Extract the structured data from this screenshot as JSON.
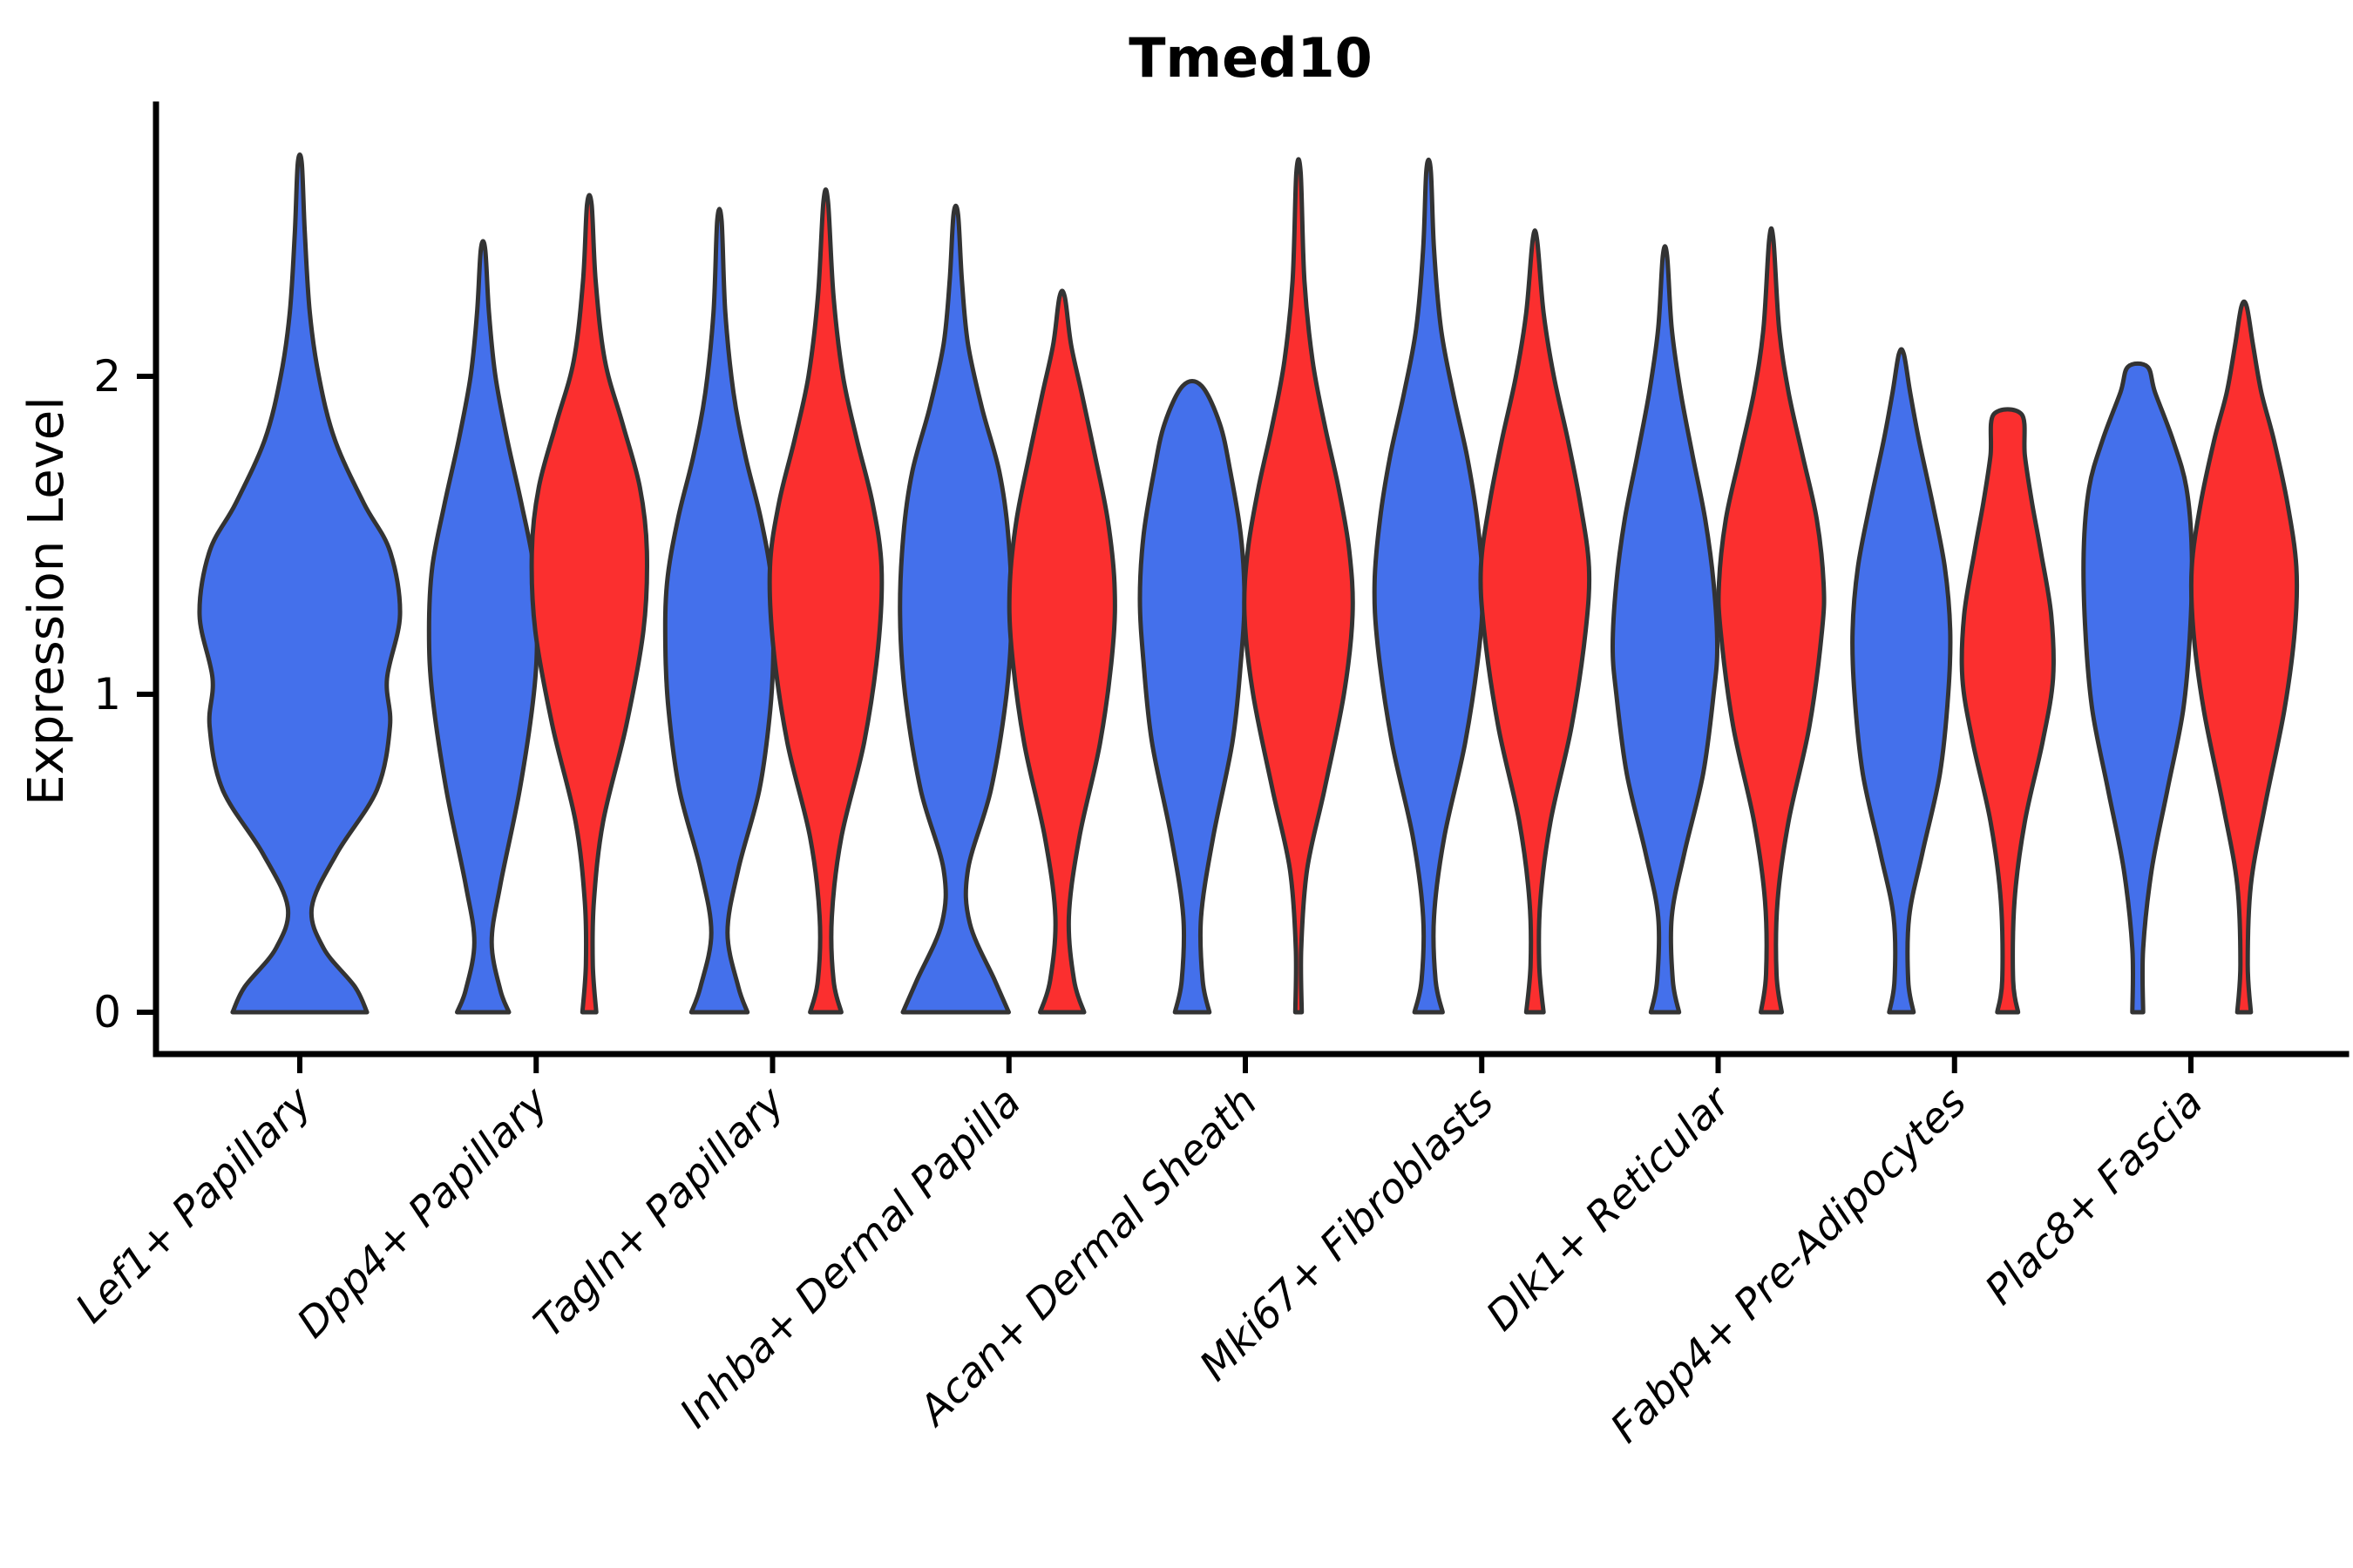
{
  "title": "Tmed10",
  "chart_data": {
    "type": "violin",
    "title": "Tmed10",
    "xlabel": "",
    "ylabel": "Expression Level",
    "ylim": [
      -0.14,
      2.85
    ],
    "yticks": [
      0,
      1,
      2
    ],
    "grid": false,
    "legend": "none",
    "colors": {
      "blue": "#4470eb",
      "red": "#fb2f2f",
      "outline": "#333333"
    },
    "categories": [
      "Lef1+ Papillary",
      "Dpp4+ Papillary",
      "Tagln+ Papillary",
      "Inhba+ Dermal Papilla",
      "Acan+ Dermal Sheath",
      "Mki67+ Fibroblasts",
      "Dlk1+ Reticular",
      "Fabp4+ Pre-Adipocytes",
      "Plac8+ Fascia"
    ],
    "violins": [
      {
        "category_index": 0,
        "group": "blue",
        "position": "center",
        "width": 115,
        "flat_top": false,
        "max_expression": 2.67,
        "profile": [
          [
            0,
            0.67
          ],
          [
            0.08,
            0.55
          ],
          [
            0.2,
            0.24
          ],
          [
            0.33,
            0.12
          ],
          [
            0.5,
            0.37
          ],
          [
            0.7,
            0.77
          ],
          [
            0.9,
            0.9
          ],
          [
            1.05,
            0.87
          ],
          [
            1.25,
            1.0
          ],
          [
            1.45,
            0.9
          ],
          [
            1.6,
            0.64
          ],
          [
            1.8,
            0.35
          ],
          [
            2.0,
            0.19
          ],
          [
            2.2,
            0.1
          ],
          [
            2.45,
            0.05
          ],
          [
            2.67,
            0.02
          ]
        ]
      },
      {
        "category_index": 1,
        "group": "blue",
        "position": "left",
        "width": 62,
        "flat_top": false,
        "max_expression": 2.4,
        "profile": [
          [
            0,
            0.48
          ],
          [
            0.07,
            0.32
          ],
          [
            0.22,
            0.16
          ],
          [
            0.4,
            0.32
          ],
          [
            0.7,
            0.68
          ],
          [
            1.0,
            0.94
          ],
          [
            1.2,
            1.0
          ],
          [
            1.4,
            0.94
          ],
          [
            1.6,
            0.71
          ],
          [
            1.8,
            0.45
          ],
          [
            2.0,
            0.23
          ],
          [
            2.2,
            0.11
          ],
          [
            2.4,
            0.04
          ]
        ]
      },
      {
        "category_index": 1,
        "group": "red",
        "position": "right",
        "width": 66,
        "flat_top": false,
        "max_expression": 2.54,
        "profile": [
          [
            0,
            0.12
          ],
          [
            0.15,
            0.06
          ],
          [
            0.35,
            0.08
          ],
          [
            0.6,
            0.24
          ],
          [
            0.9,
            0.64
          ],
          [
            1.2,
            0.94
          ],
          [
            1.45,
            1.0
          ],
          [
            1.65,
            0.88
          ],
          [
            1.85,
            0.58
          ],
          [
            2.05,
            0.27
          ],
          [
            2.3,
            0.11
          ],
          [
            2.54,
            0.04
          ]
        ]
      },
      {
        "category_index": 2,
        "group": "blue",
        "position": "left",
        "width": 62,
        "flat_top": false,
        "max_expression": 2.49,
        "profile": [
          [
            0,
            0.52
          ],
          [
            0.08,
            0.35
          ],
          [
            0.25,
            0.15
          ],
          [
            0.45,
            0.35
          ],
          [
            0.7,
            0.74
          ],
          [
            0.95,
            0.94
          ],
          [
            1.15,
            1.0
          ],
          [
            1.35,
            0.97
          ],
          [
            1.55,
            0.77
          ],
          [
            1.75,
            0.48
          ],
          [
            1.95,
            0.26
          ],
          [
            2.2,
            0.11
          ],
          [
            2.49,
            0.04
          ]
        ]
      },
      {
        "category_index": 2,
        "group": "red",
        "position": "right",
        "width": 64,
        "flat_top": false,
        "max_expression": 2.55,
        "profile": [
          [
            0,
            0.28
          ],
          [
            0.1,
            0.14
          ],
          [
            0.3,
            0.11
          ],
          [
            0.55,
            0.28
          ],
          [
            0.85,
            0.69
          ],
          [
            1.15,
            0.94
          ],
          [
            1.4,
            1.0
          ],
          [
            1.6,
            0.84
          ],
          [
            1.8,
            0.56
          ],
          [
            2.0,
            0.31
          ],
          [
            2.25,
            0.14
          ],
          [
            2.55,
            0.04
          ]
        ]
      },
      {
        "category_index": 3,
        "group": "blue",
        "position": "left",
        "width": 64,
        "flat_top": false,
        "max_expression": 2.51,
        "profile": [
          [
            0,
            0.95
          ],
          [
            0.1,
            0.7
          ],
          [
            0.28,
            0.25
          ],
          [
            0.45,
            0.22
          ],
          [
            0.7,
            0.63
          ],
          [
            1.0,
            0.91
          ],
          [
            1.25,
            1.0
          ],
          [
            1.5,
            0.94
          ],
          [
            1.7,
            0.78
          ],
          [
            1.9,
            0.47
          ],
          [
            2.1,
            0.22
          ],
          [
            2.3,
            0.11
          ],
          [
            2.51,
            0.04
          ]
        ]
      },
      {
        "category_index": 3,
        "group": "red",
        "position": "right",
        "width": 60,
        "flat_top": false,
        "max_expression": 2.25,
        "profile": [
          [
            0,
            0.42
          ],
          [
            0.1,
            0.23
          ],
          [
            0.3,
            0.13
          ],
          [
            0.55,
            0.33
          ],
          [
            0.85,
            0.73
          ],
          [
            1.15,
            0.97
          ],
          [
            1.35,
            1.0
          ],
          [
            1.55,
            0.87
          ],
          [
            1.75,
            0.63
          ],
          [
            1.95,
            0.37
          ],
          [
            2.1,
            0.17
          ],
          [
            2.25,
            0.05
          ]
        ]
      },
      {
        "category_index": 4,
        "group": "blue",
        "position": "left",
        "width": 60,
        "flat_top": true,
        "max_expression": 1.97,
        "profile": [
          [
            0,
            0.33
          ],
          [
            0.1,
            0.2
          ],
          [
            0.3,
            0.17
          ],
          [
            0.55,
            0.4
          ],
          [
            0.85,
            0.77
          ],
          [
            1.1,
            0.93
          ],
          [
            1.3,
            1.0
          ],
          [
            1.5,
            0.93
          ],
          [
            1.7,
            0.73
          ],
          [
            1.85,
            0.53
          ],
          [
            1.97,
            0.18
          ]
        ]
      },
      {
        "category_index": 4,
        "group": "red",
        "position": "right",
        "width": 62,
        "flat_top": false,
        "max_expression": 2.64,
        "profile": [
          [
            0,
            0.06
          ],
          [
            0.2,
            0.05
          ],
          [
            0.45,
            0.16
          ],
          [
            0.7,
            0.48
          ],
          [
            1.0,
            0.84
          ],
          [
            1.25,
            1.0
          ],
          [
            1.45,
            0.94
          ],
          [
            1.65,
            0.74
          ],
          [
            1.85,
            0.48
          ],
          [
            2.05,
            0.26
          ],
          [
            2.3,
            0.11
          ],
          [
            2.64,
            0.04
          ]
        ]
      },
      {
        "category_index": 5,
        "group": "blue",
        "position": "left",
        "width": 62,
        "flat_top": false,
        "max_expression": 2.65,
        "profile": [
          [
            0,
            0.26
          ],
          [
            0.1,
            0.13
          ],
          [
            0.3,
            0.1
          ],
          [
            0.55,
            0.29
          ],
          [
            0.85,
            0.68
          ],
          [
            1.15,
            0.94
          ],
          [
            1.35,
            1.0
          ],
          [
            1.55,
            0.9
          ],
          [
            1.75,
            0.71
          ],
          [
            1.95,
            0.45
          ],
          [
            2.15,
            0.23
          ],
          [
            2.4,
            0.1
          ],
          [
            2.65,
            0.04
          ]
        ]
      },
      {
        "category_index": 5,
        "group": "red",
        "position": "right",
        "width": 62,
        "flat_top": false,
        "max_expression": 2.43,
        "profile": [
          [
            0,
            0.16
          ],
          [
            0.15,
            0.08
          ],
          [
            0.35,
            0.1
          ],
          [
            0.6,
            0.29
          ],
          [
            0.9,
            0.68
          ],
          [
            1.2,
            0.94
          ],
          [
            1.4,
            1.0
          ],
          [
            1.6,
            0.84
          ],
          [
            1.8,
            0.61
          ],
          [
            2.0,
            0.35
          ],
          [
            2.2,
            0.16
          ],
          [
            2.43,
            0.04
          ]
        ]
      },
      {
        "category_index": 6,
        "group": "blue",
        "position": "left",
        "width": 60,
        "flat_top": false,
        "max_expression": 2.38,
        "profile": [
          [
            0,
            0.27
          ],
          [
            0.1,
            0.15
          ],
          [
            0.3,
            0.13
          ],
          [
            0.5,
            0.37
          ],
          [
            0.75,
            0.73
          ],
          [
            1.0,
            0.93
          ],
          [
            1.15,
            1.0
          ],
          [
            1.35,
            0.93
          ],
          [
            1.55,
            0.77
          ],
          [
            1.75,
            0.53
          ],
          [
            1.95,
            0.3
          ],
          [
            2.15,
            0.13
          ],
          [
            2.38,
            0.04
          ]
        ]
      },
      {
        "category_index": 6,
        "group": "red",
        "position": "right",
        "width": 60,
        "flat_top": false,
        "max_expression": 2.43,
        "profile": [
          [
            0,
            0.2
          ],
          [
            0.12,
            0.1
          ],
          [
            0.35,
            0.12
          ],
          [
            0.6,
            0.33
          ],
          [
            0.9,
            0.73
          ],
          [
            1.2,
            0.97
          ],
          [
            1.35,
            1.0
          ],
          [
            1.55,
            0.87
          ],
          [
            1.75,
            0.6
          ],
          [
            1.95,
            0.33
          ],
          [
            2.15,
            0.15
          ],
          [
            2.43,
            0.04
          ]
        ]
      },
      {
        "category_index": 7,
        "group": "blue",
        "position": "left",
        "width": 56,
        "flat_top": false,
        "max_expression": 2.07,
        "profile": [
          [
            0,
            0.25
          ],
          [
            0.1,
            0.14
          ],
          [
            0.3,
            0.16
          ],
          [
            0.5,
            0.43
          ],
          [
            0.75,
            0.79
          ],
          [
            1.0,
            0.96
          ],
          [
            1.2,
            1.0
          ],
          [
            1.4,
            0.89
          ],
          [
            1.6,
            0.64
          ],
          [
            1.8,
            0.36
          ],
          [
            1.95,
            0.18
          ],
          [
            2.07,
            0.05
          ]
        ]
      },
      {
        "category_index": 7,
        "group": "red",
        "position": "right",
        "width": 52,
        "flat_top": true,
        "max_expression": 1.88,
        "profile": [
          [
            0,
            0.23
          ],
          [
            0.1,
            0.12
          ],
          [
            0.35,
            0.15
          ],
          [
            0.6,
            0.38
          ],
          [
            0.85,
            0.77
          ],
          [
            1.05,
            1.0
          ],
          [
            1.25,
            0.96
          ],
          [
            1.45,
            0.73
          ],
          [
            1.6,
            0.54
          ],
          [
            1.75,
            0.38
          ],
          [
            1.88,
            0.31
          ]
        ]
      },
      {
        "category_index": 8,
        "group": "blue",
        "position": "left",
        "width": 62,
        "flat_top": true,
        "max_expression": 2.03,
        "profile": [
          [
            0,
            0.1
          ],
          [
            0.2,
            0.1
          ],
          [
            0.45,
            0.26
          ],
          [
            0.7,
            0.55
          ],
          [
            0.95,
            0.84
          ],
          [
            1.2,
            0.97
          ],
          [
            1.45,
            1.0
          ],
          [
            1.65,
            0.9
          ],
          [
            1.8,
            0.65
          ],
          [
            1.95,
            0.32
          ],
          [
            2.03,
            0.18
          ]
        ]
      },
      {
        "category_index": 8,
        "group": "red",
        "position": "right",
        "width": 60,
        "flat_top": false,
        "max_expression": 2.22,
        "profile": [
          [
            0,
            0.13
          ],
          [
            0.15,
            0.07
          ],
          [
            0.4,
            0.13
          ],
          [
            0.65,
            0.4
          ],
          [
            0.95,
            0.77
          ],
          [
            1.2,
            0.97
          ],
          [
            1.4,
            1.0
          ],
          [
            1.6,
            0.83
          ],
          [
            1.8,
            0.57
          ],
          [
            1.95,
            0.33
          ],
          [
            2.1,
            0.17
          ],
          [
            2.22,
            0.05
          ]
        ]
      }
    ]
  }
}
